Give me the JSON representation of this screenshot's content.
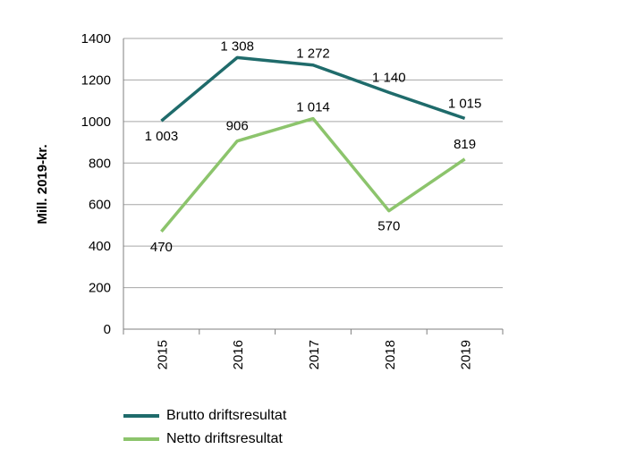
{
  "chart_data": {
    "type": "line",
    "ylabel": "Mill. 2019-kr.",
    "xlabel": "",
    "ylim": [
      0,
      1400
    ],
    "yticks": [
      0,
      200,
      400,
      600,
      800,
      1000,
      1200,
      1400
    ],
    "categories": [
      "2015",
      "2016",
      "2017",
      "2018",
      "2019"
    ],
    "grid": "horizontal",
    "legend_position": "bottom-left",
    "series": [
      {
        "name": "Brutto driftsresultat",
        "color": "#1f6b6b",
        "values": [
          1003,
          1308,
          1272,
          1140,
          1015
        ],
        "labels": [
          "1 003",
          "1 308",
          "1 272",
          "1 140",
          "1 015"
        ]
      },
      {
        "name": "Netto driftsresultat",
        "color": "#8cc46c",
        "values": [
          470,
          906,
          1014,
          570,
          819
        ],
        "labels": [
          "470",
          "906",
          "1 014",
          "570",
          "819"
        ]
      }
    ]
  }
}
